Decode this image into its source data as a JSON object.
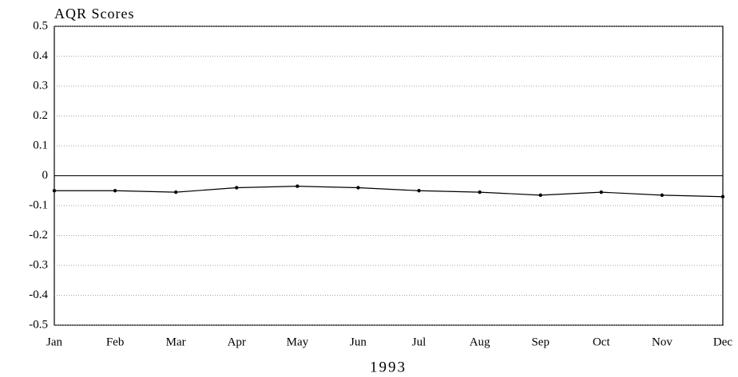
{
  "chart_data": {
    "type": "line",
    "title": "AQR Scores",
    "x_label": "1993",
    "categories": [
      "Jan",
      "Feb",
      "Mar",
      "Apr",
      "May",
      "Jun",
      "Jul",
      "Aug",
      "Sep",
      "Oct",
      "Nov",
      "Dec"
    ],
    "series": [
      {
        "name": "AQR Scores",
        "color": "#000000",
        "values": [
          -0.05,
          -0.05,
          -0.055,
          -0.04,
          -0.035,
          -0.04,
          -0.05,
          -0.055,
          -0.065,
          -0.055,
          -0.065,
          -0.07
        ]
      }
    ],
    "ylim": [
      -0.5,
      0.5
    ],
    "yticks": [
      0.5,
      0.4,
      0.3,
      0.2,
      0.1,
      0,
      -0.1,
      -0.2,
      -0.3,
      -0.4,
      -0.5
    ],
    "grid": true
  }
}
